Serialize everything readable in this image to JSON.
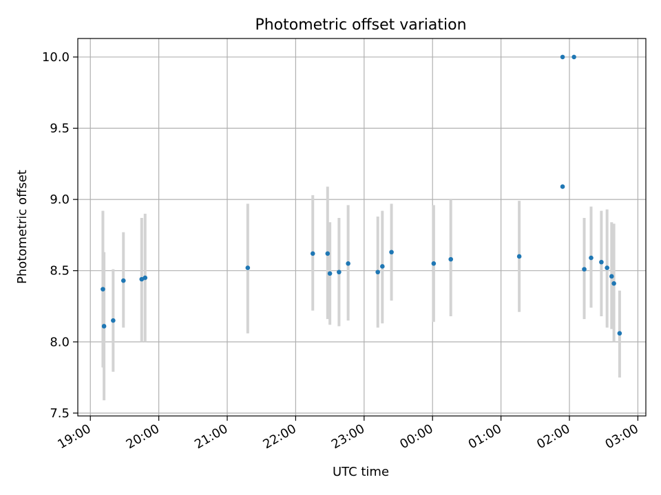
{
  "chart_data": {
    "type": "scatter",
    "title": "Photometric offset variation",
    "xlabel": "UTC time",
    "ylabel": "Photometric offset",
    "xlim": [
      "2000-01-01T18:49",
      "2000-01-02T03:07"
    ],
    "ylim": [
      7.48,
      10.13
    ],
    "x_ticks": [
      "19:00",
      "20:00",
      "21:00",
      "22:00",
      "23:00",
      "00:00",
      "01:00",
      "02:00",
      "03:00"
    ],
    "y_ticks": [
      "7.5",
      "8.0",
      "8.5",
      "9.0",
      "9.5",
      "10.0"
    ],
    "grid": true,
    "colors": {
      "points": "#1f77b4",
      "errorbars": "#d3d3d3",
      "grid": "#b0b0b0"
    },
    "series": [
      {
        "points": [
          {
            "x": "2000-01-01T19:11",
            "y": 8.37,
            "low": 7.82,
            "high": 8.92
          },
          {
            "x": "2000-01-01T19:12",
            "y": 8.11,
            "low": 7.59,
            "high": 8.63
          },
          {
            "x": "2000-01-01T19:20",
            "y": 8.15,
            "low": 7.79,
            "high": 8.51
          },
          {
            "x": "2000-01-01T19:29",
            "y": 8.43,
            "low": 8.1,
            "high": 8.77
          },
          {
            "x": "2000-01-01T19:45",
            "y": 8.44,
            "low": 8.0,
            "high": 8.87
          },
          {
            "x": "2000-01-01T19:48",
            "y": 8.45,
            "low": 8.0,
            "high": 8.9
          },
          {
            "x": "2000-01-01T21:18",
            "y": 8.52,
            "low": 8.06,
            "high": 8.97
          },
          {
            "x": "2000-01-01T22:15",
            "y": 8.62,
            "low": 8.22,
            "high": 9.03
          },
          {
            "x": "2000-01-01T22:28",
            "y": 8.62,
            "low": 8.16,
            "high": 9.09
          },
          {
            "x": "2000-01-01T22:30",
            "y": 8.48,
            "low": 8.12,
            "high": 8.84
          },
          {
            "x": "2000-01-01T22:38",
            "y": 8.49,
            "low": 8.11,
            "high": 8.87
          },
          {
            "x": "2000-01-01T22:46",
            "y": 8.55,
            "low": 8.15,
            "high": 8.96
          },
          {
            "x": "2000-01-01T23:12",
            "y": 8.49,
            "low": 8.1,
            "high": 8.88
          },
          {
            "x": "2000-01-01T23:16",
            "y": 8.53,
            "low": 8.13,
            "high": 8.92
          },
          {
            "x": "2000-01-01T23:24",
            "y": 8.63,
            "low": 8.29,
            "high": 8.97
          },
          {
            "x": "2000-01-02T00:01",
            "y": 8.55,
            "low": 8.14,
            "high": 8.96
          },
          {
            "x": "2000-01-02T00:16",
            "y": 8.58,
            "low": 8.18,
            "high": 9.0
          },
          {
            "x": "2000-01-02T01:16",
            "y": 8.6,
            "low": 8.21,
            "high": 8.99
          },
          {
            "x": "2000-01-02T01:54",
            "y": 10.0
          },
          {
            "x": "2000-01-02T01:54",
            "y": 9.09
          },
          {
            "x": "2000-01-02T02:04",
            "y": 10.0
          },
          {
            "x": "2000-01-02T02:13",
            "y": 8.51,
            "low": 8.16,
            "high": 8.87
          },
          {
            "x": "2000-01-02T02:19",
            "y": 8.59,
            "low": 8.24,
            "high": 8.95
          },
          {
            "x": "2000-01-02T02:28",
            "y": 8.56,
            "low": 8.18,
            "high": 8.92
          },
          {
            "x": "2000-01-02T02:33",
            "y": 8.52,
            "low": 8.1,
            "high": 8.93
          },
          {
            "x": "2000-01-02T02:37",
            "y": 8.46,
            "low": 8.09,
            "high": 8.84
          },
          {
            "x": "2000-01-02T02:39",
            "y": 8.41,
            "low": 8.0,
            "high": 8.83
          },
          {
            "x": "2000-01-02T02:44",
            "y": 8.06,
            "low": 7.75,
            "high": 8.36
          }
        ]
      }
    ]
  }
}
